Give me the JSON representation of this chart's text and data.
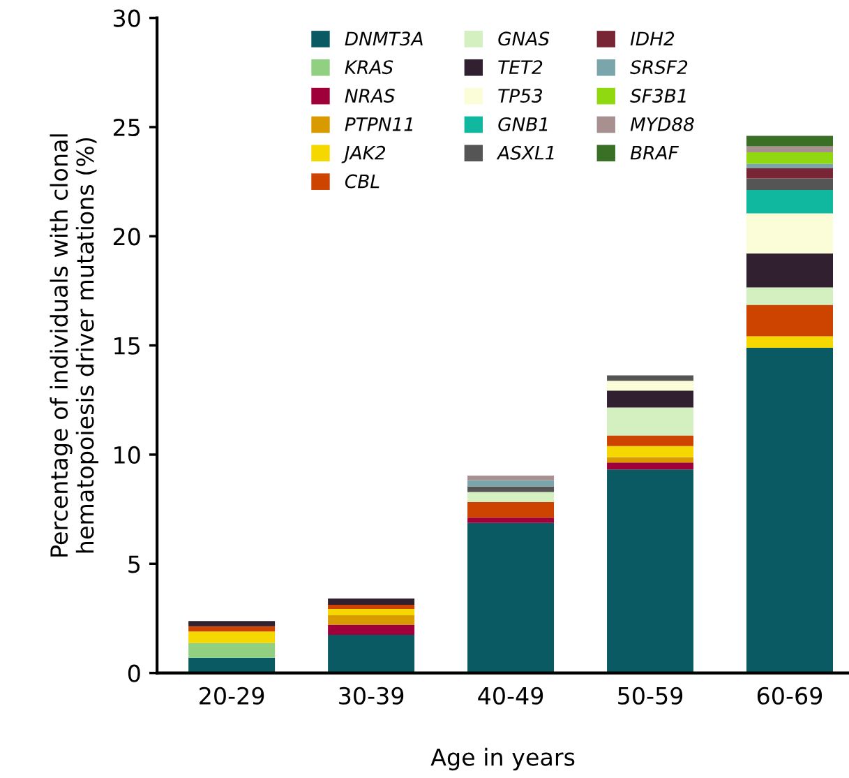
{
  "chart_data": {
    "type": "bar",
    "stacked": true,
    "xlabel": "Age in years",
    "ylabel": "Percentage of individuals with clonal\nhematopoiesis driver mutations (%)",
    "categories": [
      "20-29",
      "30-39",
      "40-49",
      "50-59",
      "60-69"
    ],
    "ylim": [
      0,
      30
    ],
    "yticks": [
      0,
      5,
      10,
      15,
      20,
      25,
      30
    ],
    "grid": false,
    "legend": "top",
    "series": [
      {
        "name": "DNMT3A",
        "color": "#0a5a64",
        "values": [
          0.7,
          1.75,
          6.87,
          9.32,
          14.89
        ]
      },
      {
        "name": "KRAS",
        "color": "#90d080",
        "values": [
          0.67,
          null,
          null,
          null,
          null
        ]
      },
      {
        "name": "NRAS",
        "color": "#a0003a",
        "values": [
          null,
          0.46,
          0.24,
          0.32,
          null
        ]
      },
      {
        "name": "PTPN11",
        "color": "#d99a00",
        "values": [
          null,
          0.43,
          null,
          0.25,
          null
        ]
      },
      {
        "name": "JAK2",
        "color": "#f5d800",
        "values": [
          0.53,
          0.29,
          null,
          0.5,
          0.53
        ]
      },
      {
        "name": "CBL",
        "color": "#cc4400",
        "values": [
          0.24,
          0.19,
          0.72,
          0.49,
          1.44
        ]
      },
      {
        "name": "GNAS",
        "color": "#d4efc0",
        "values": [
          null,
          null,
          0.46,
          1.28,
          0.8
        ]
      },
      {
        "name": "TET2",
        "color": "#302030",
        "values": [
          0.24,
          0.29,
          null,
          0.77,
          1.55
        ]
      },
      {
        "name": "TP53",
        "color": "#fafdd8",
        "values": [
          null,
          null,
          null,
          0.45,
          1.84
        ]
      },
      {
        "name": "GNB1",
        "color": "#10b8a0",
        "values": [
          null,
          null,
          null,
          null,
          1.07
        ]
      },
      {
        "name": "ASXL1",
        "color": "#555555",
        "values": [
          null,
          null,
          0.25,
          0.25,
          0.53
        ]
      },
      {
        "name": "IDH2",
        "color": "#782535",
        "values": [
          null,
          null,
          null,
          null,
          0.46
        ]
      },
      {
        "name": "SRSF2",
        "color": "#7aa5aa",
        "values": [
          null,
          null,
          0.29,
          null,
          0.21
        ]
      },
      {
        "name": "SF3B1",
        "color": "#90d810",
        "values": [
          null,
          null,
          null,
          null,
          0.53
        ]
      },
      {
        "name": "MYD88",
        "color": "#a89090",
        "values": [
          null,
          null,
          0.21,
          null,
          0.27
        ]
      },
      {
        "name": "BRAF",
        "color": "#3a7025",
        "values": [
          null,
          null,
          null,
          null,
          0.48
        ]
      }
    ]
  }
}
